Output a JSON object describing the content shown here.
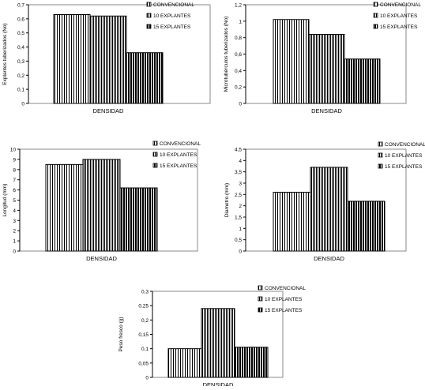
{
  "chart_data": [
    {
      "type": "bar",
      "categories": [
        "DENSIDAD"
      ],
      "xlabel": "DENSIDAD",
      "ylabel": "Explantes tuberizados (No)",
      "ylim": [
        0,
        0.7
      ],
      "yticks": [
        "0",
        "0,1",
        "0,2",
        "0,3",
        "0,4",
        "0,5",
        "0,6",
        "0,7"
      ],
      "grid": false,
      "legend": "right",
      "series": [
        {
          "name": "CONVENCIONAL",
          "values": [
            0.63
          ]
        },
        {
          "name": "10 EXPLANTES",
          "values": [
            0.62
          ]
        },
        {
          "name": "15 EXPLANTES",
          "values": [
            0.36
          ]
        }
      ]
    },
    {
      "type": "bar",
      "categories": [
        "DENSIDAD"
      ],
      "xlabel": "DENSIDAD",
      "ylabel": "Microtubérculos tuberizados (No)",
      "ylim": [
        0,
        1.2
      ],
      "yticks": [
        "0",
        "0,2",
        "0,4",
        "0,6",
        "0,8",
        "1",
        "1,2"
      ],
      "grid": false,
      "legend": "right",
      "series": [
        {
          "name": "CONVENCIONAL",
          "values": [
            1.02
          ]
        },
        {
          "name": "10 EXPLANTES",
          "values": [
            0.84
          ]
        },
        {
          "name": "15 EXPLANTES",
          "values": [
            0.54
          ]
        }
      ]
    },
    {
      "type": "bar",
      "categories": [
        "DENSIDAD"
      ],
      "xlabel": "DENSIDAD",
      "ylabel": "Longitud (mm)",
      "ylim": [
        0,
        10
      ],
      "yticks": [
        "0",
        "1",
        "2",
        "3",
        "4",
        "5",
        "6",
        "7",
        "8",
        "9",
        "10"
      ],
      "grid": false,
      "legend": "right",
      "series": [
        {
          "name": "CONVENCIONAL",
          "values": [
            8.5
          ]
        },
        {
          "name": "10 EXPLANTES",
          "values": [
            9.0
          ]
        },
        {
          "name": "15 EXPLANTES",
          "values": [
            6.2
          ]
        }
      ]
    },
    {
      "type": "bar",
      "categories": [
        "DENSIDAD"
      ],
      "xlabel": "DENSIDAD",
      "ylabel": "Diametro (mm)",
      "ylim": [
        0,
        4.5
      ],
      "yticks": [
        "0",
        "0,5",
        "1",
        "1,5",
        "2",
        "2,5",
        "3",
        "3,5",
        "4",
        "4,5"
      ],
      "grid": false,
      "legend": "right",
      "series": [
        {
          "name": "CONVENCIONAL",
          "values": [
            2.6
          ]
        },
        {
          "name": "10 EXPLANTES",
          "values": [
            3.7
          ]
        },
        {
          "name": "15 EXPLANTES",
          "values": [
            2.2
          ]
        }
      ]
    },
    {
      "type": "bar",
      "categories": [
        "DENSIDAD"
      ],
      "xlabel": "DENSIDAD",
      "ylabel": "Peso fresco (g)",
      "ylim": [
        0,
        0.3
      ],
      "yticks": [
        "0",
        "0,05",
        "0,1",
        "0,15",
        "0,2",
        "0,25",
        "0,3"
      ],
      "grid": false,
      "legend": "right",
      "series": [
        {
          "name": "CONVENCIONAL",
          "values": [
            0.1
          ]
        },
        {
          "name": "10 EXPLANTES",
          "values": [
            0.24
          ]
        },
        {
          "name": "15 EXPLANTES",
          "values": [
            0.105
          ]
        }
      ]
    }
  ]
}
